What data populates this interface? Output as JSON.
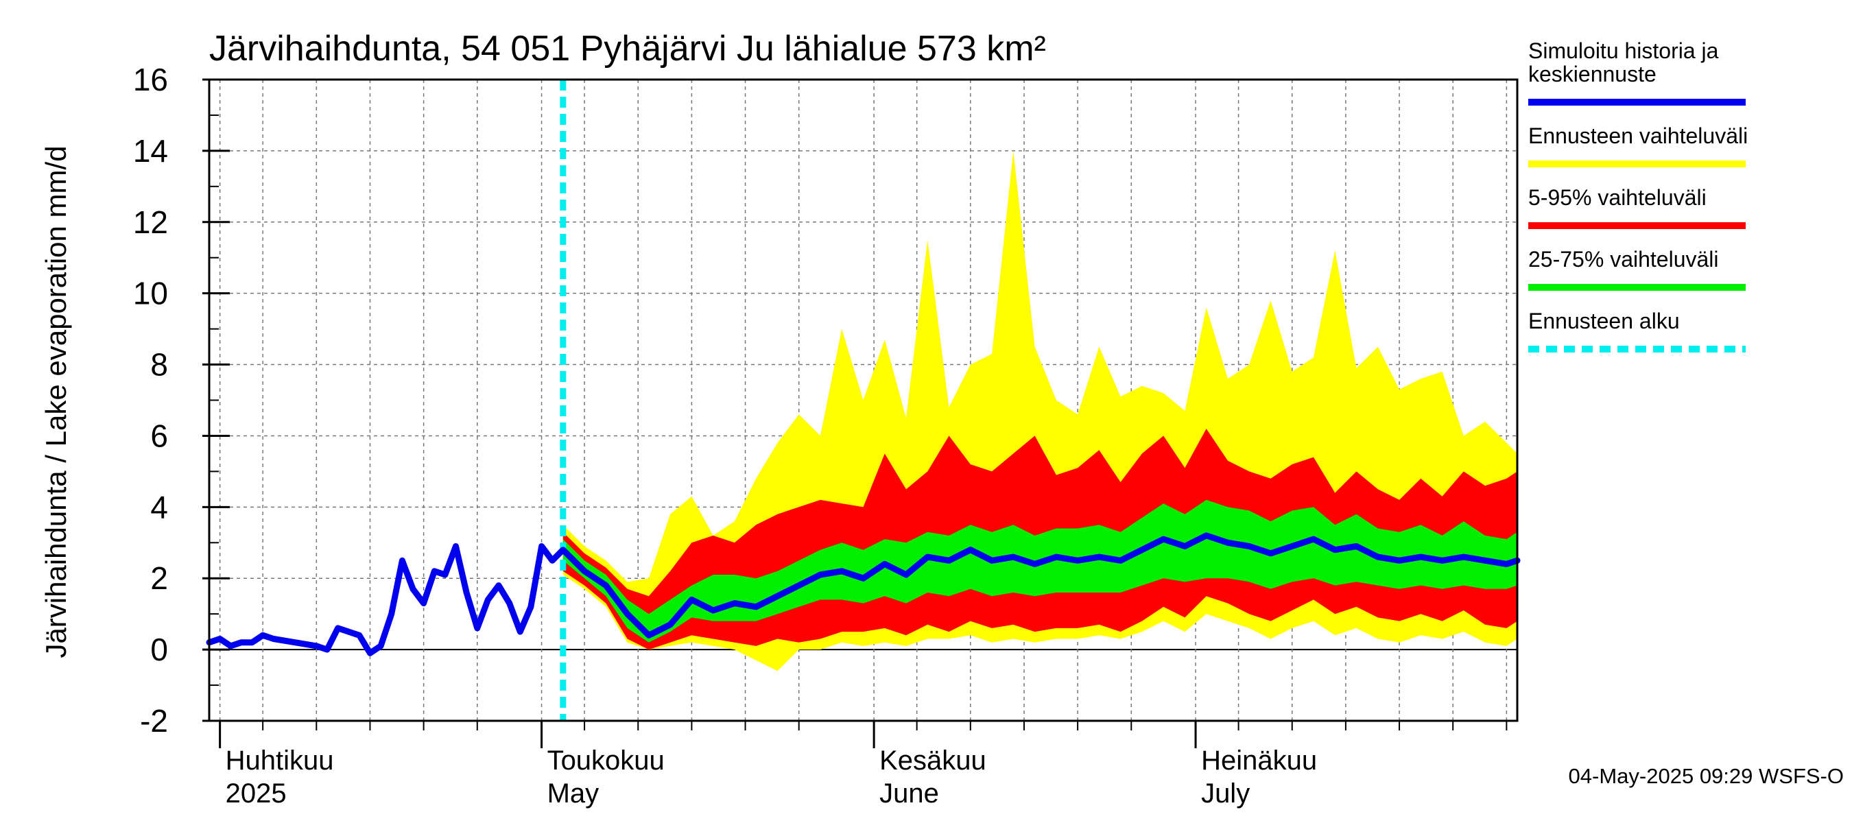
{
  "chart_data": {
    "type": "area",
    "title": "Järvihaihdunta, 54 051 Pyhäjärvi Ju lähialue 573 km²",
    "ylabel": "Järvihaihdunta / Lake evaporation   mm/d",
    "ylim": [
      -2,
      16
    ],
    "xlim": [
      "2025-03-31",
      "2025-07-31"
    ],
    "yticks": [
      -2,
      0,
      2,
      4,
      6,
      8,
      10,
      12,
      14,
      16
    ],
    "grid": true,
    "month_labels": [
      {
        "date": "2025-04-01",
        "line1": "Huhtikuu",
        "line2": "2025"
      },
      {
        "date": "2025-05-01",
        "line1": "Toukokuu",
        "line2": "May"
      },
      {
        "date": "2025-06-01",
        "line1": "Kesäkuu",
        "line2": "June"
      },
      {
        "date": "2025-07-01",
        "line1": "Heinäkuu",
        "line2": "July"
      }
    ],
    "forecast_start": "2025-05-03",
    "timestamp": "04-May-2025 09:29 WSFS-O",
    "legend_position": "right",
    "legend": [
      {
        "key": "median",
        "label_lines": [
          "Simuloitu historia ja",
          "keskiennuste"
        ],
        "color": "#0000ee",
        "style": "solid"
      },
      {
        "key": "range",
        "label_lines": [
          "Ennusteen vaihteluväli"
        ],
        "color": "#ffff00",
        "style": "solid"
      },
      {
        "key": "p5_95",
        "label_lines": [
          "5-95% vaihteluväli"
        ],
        "color": "#ff0000",
        "style": "solid"
      },
      {
        "key": "p25_75",
        "label_lines": [
          "25-75% vaihteluväli"
        ],
        "color": "#00ee00",
        "style": "solid"
      },
      {
        "key": "start",
        "label_lines": [
          "Ennusteen alku"
        ],
        "color": "#00eeee",
        "style": "dashed"
      }
    ],
    "history": {
      "name": "Simuloitu historia ja keskiennuste",
      "dates": [
        "2025-03-31",
        "2025-04-01",
        "2025-04-02",
        "2025-04-03",
        "2025-04-04",
        "2025-04-05",
        "2025-04-06",
        "2025-04-08",
        "2025-04-10",
        "2025-04-11",
        "2025-04-12",
        "2025-04-13",
        "2025-04-14",
        "2025-04-15",
        "2025-04-16",
        "2025-04-17",
        "2025-04-18",
        "2025-04-19",
        "2025-04-20",
        "2025-04-21",
        "2025-04-22",
        "2025-04-23",
        "2025-04-24",
        "2025-04-25",
        "2025-04-26",
        "2025-04-27",
        "2025-04-28",
        "2025-04-29",
        "2025-04-30",
        "2025-05-01",
        "2025-05-02"
      ],
      "values": [
        0.2,
        0.3,
        0.1,
        0.2,
        0.2,
        0.4,
        0.3,
        0.2,
        0.1,
        0.0,
        0.6,
        0.5,
        0.4,
        -0.1,
        0.1,
        1.0,
        2.5,
        1.7,
        1.3,
        2.2,
        2.1,
        2.9,
        1.6,
        0.6,
        1.4,
        1.8,
        1.3,
        0.5,
        1.2,
        2.9,
        2.5
      ]
    },
    "forecast": {
      "dates": [
        "2025-05-03",
        "2025-05-05",
        "2025-05-07",
        "2025-05-09",
        "2025-05-11",
        "2025-05-13",
        "2025-05-15",
        "2025-05-17",
        "2025-05-19",
        "2025-05-21",
        "2025-05-23",
        "2025-05-25",
        "2025-05-27",
        "2025-05-29",
        "2025-05-31",
        "2025-06-02",
        "2025-06-04",
        "2025-06-06",
        "2025-06-08",
        "2025-06-10",
        "2025-06-12",
        "2025-06-14",
        "2025-06-16",
        "2025-06-18",
        "2025-06-20",
        "2025-06-22",
        "2025-06-24",
        "2025-06-26",
        "2025-06-28",
        "2025-06-30",
        "2025-07-02",
        "2025-07-04",
        "2025-07-06",
        "2025-07-08",
        "2025-07-10",
        "2025-07-12",
        "2025-07-14",
        "2025-07-16",
        "2025-07-18",
        "2025-07-20",
        "2025-07-22",
        "2025-07-24",
        "2025-07-26",
        "2025-07-28",
        "2025-07-30",
        "2025-07-31"
      ],
      "median": [
        2.8,
        2.2,
        1.8,
        1.0,
        0.4,
        0.7,
        1.4,
        1.1,
        1.3,
        1.2,
        1.5,
        1.8,
        2.1,
        2.2,
        2.0,
        2.4,
        2.1,
        2.6,
        2.5,
        2.8,
        2.5,
        2.6,
        2.4,
        2.6,
        2.5,
        2.6,
        2.5,
        2.8,
        3.1,
        2.9,
        3.2,
        3.0,
        2.9,
        2.7,
        2.9,
        3.1,
        2.8,
        2.9,
        2.6,
        2.5,
        2.6,
        2.5,
        2.6,
        2.5,
        2.4,
        2.5
      ],
      "p25": [
        2.5,
        2.0,
        1.5,
        0.6,
        0.2,
        0.5,
        0.9,
        0.8,
        0.8,
        0.8,
        1.0,
        1.2,
        1.4,
        1.4,
        1.3,
        1.5,
        1.3,
        1.6,
        1.5,
        1.7,
        1.5,
        1.6,
        1.5,
        1.6,
        1.6,
        1.6,
        1.6,
        1.8,
        2.0,
        1.9,
        2.0,
        2.0,
        1.9,
        1.7,
        1.9,
        2.0,
        1.8,
        1.9,
        1.8,
        1.7,
        1.8,
        1.7,
        1.8,
        1.7,
        1.7,
        1.8
      ],
      "p75": [
        3.1,
        2.5,
        2.1,
        1.4,
        1.0,
        1.4,
        1.8,
        2.1,
        2.1,
        2.0,
        2.2,
        2.5,
        2.8,
        3.0,
        2.8,
        3.1,
        3.0,
        3.3,
        3.2,
        3.5,
        3.3,
        3.5,
        3.2,
        3.4,
        3.4,
        3.5,
        3.3,
        3.7,
        4.1,
        3.8,
        4.2,
        4.0,
        3.9,
        3.6,
        3.9,
        4.0,
        3.5,
        3.8,
        3.4,
        3.3,
        3.5,
        3.2,
        3.6,
        3.2,
        3.1,
        3.3
      ],
      "p5": [
        2.2,
        1.8,
        1.3,
        0.3,
        0.0,
        0.2,
        0.4,
        0.3,
        0.2,
        0.1,
        0.3,
        0.2,
        0.3,
        0.5,
        0.5,
        0.6,
        0.4,
        0.7,
        0.5,
        0.8,
        0.6,
        0.7,
        0.5,
        0.6,
        0.6,
        0.7,
        0.5,
        0.8,
        1.2,
        0.9,
        1.5,
        1.3,
        1.0,
        0.8,
        1.1,
        1.4,
        1.0,
        1.2,
        0.9,
        0.8,
        1.0,
        0.8,
        1.1,
        0.7,
        0.6,
        0.8
      ],
      "p95": [
        3.3,
        2.7,
        2.3,
        1.7,
        1.5,
        2.2,
        3.0,
        3.2,
        3.0,
        3.5,
        3.8,
        4.0,
        4.2,
        4.1,
        4.0,
        5.5,
        4.5,
        5.0,
        6.0,
        5.2,
        5.0,
        5.5,
        6.0,
        4.9,
        5.1,
        5.6,
        4.7,
        5.5,
        6.0,
        5.1,
        6.2,
        5.3,
        5.0,
        4.8,
        5.2,
        5.4,
        4.4,
        5.0,
        4.5,
        4.2,
        4.8,
        4.3,
        5.0,
        4.6,
        4.8,
        5.0
      ],
      "min": [
        2.1,
        1.7,
        1.2,
        0.2,
        0.0,
        0.1,
        0.2,
        0.1,
        0.0,
        -0.3,
        -0.6,
        0.0,
        0.0,
        0.2,
        0.1,
        0.2,
        0.1,
        0.3,
        0.3,
        0.4,
        0.2,
        0.3,
        0.2,
        0.3,
        0.3,
        0.4,
        0.3,
        0.5,
        0.8,
        0.5,
        1.0,
        0.8,
        0.6,
        0.3,
        0.6,
        0.8,
        0.4,
        0.6,
        0.3,
        0.2,
        0.4,
        0.3,
        0.5,
        0.2,
        0.1,
        0.3
      ],
      "max": [
        3.5,
        2.9,
        2.5,
        1.9,
        2.0,
        3.8,
        4.3,
        3.2,
        3.6,
        4.8,
        5.8,
        6.6,
        6.0,
        9.0,
        7.0,
        8.7,
        6.5,
        11.5,
        6.8,
        8.0,
        8.3,
        14.0,
        8.5,
        7.0,
        6.6,
        8.5,
        7.1,
        7.4,
        7.2,
        6.7,
        9.6,
        7.6,
        8.0,
        9.8,
        7.8,
        8.2,
        11.2,
        7.9,
        8.5,
        7.3,
        7.6,
        7.8,
        6.0,
        6.4,
        5.8,
        5.5
      ]
    }
  }
}
